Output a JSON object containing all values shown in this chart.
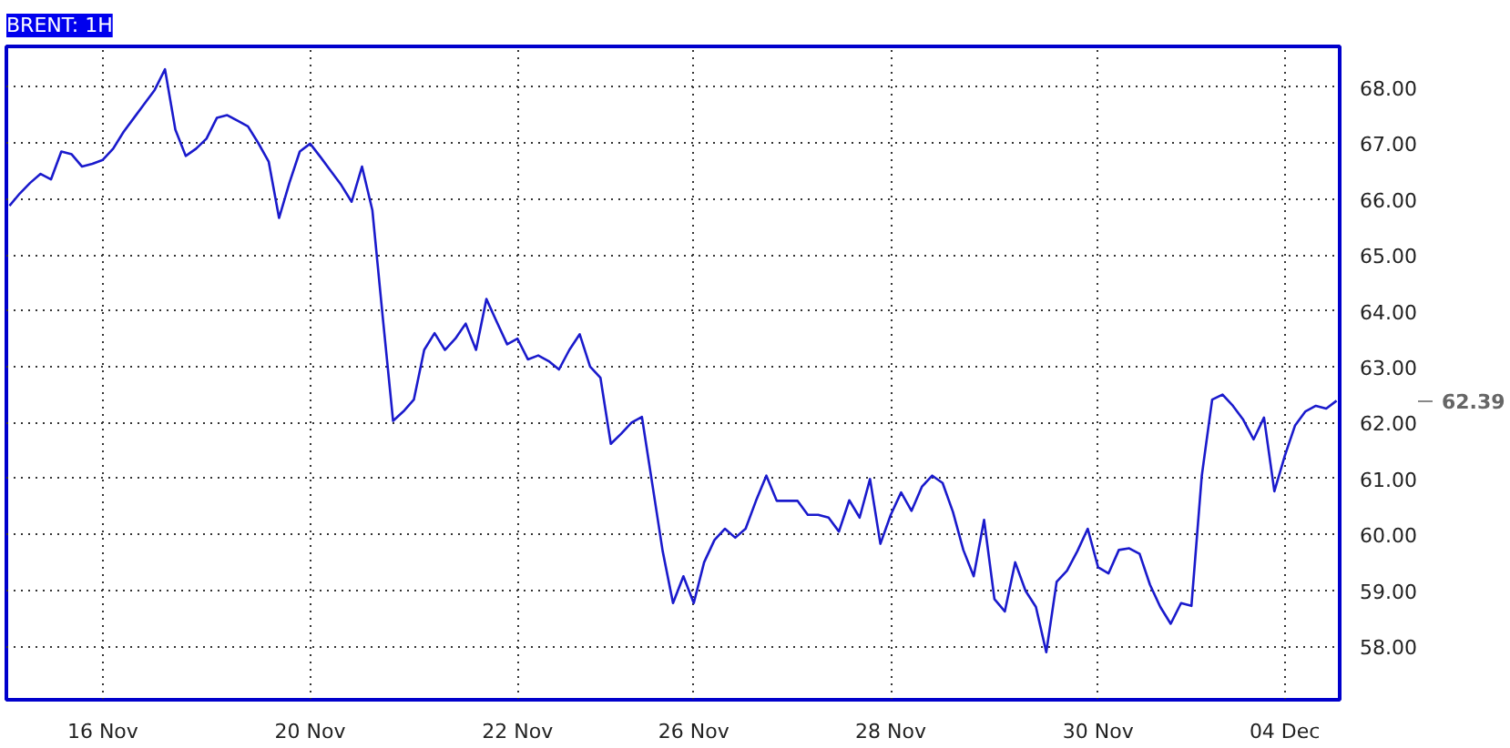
{
  "chart_data": {
    "type": "line",
    "title": "BRENT: 1H",
    "categories": [
      null,
      null,
      null,
      null,
      null,
      null,
      null,
      null,
      null,
      "16 Nov",
      null,
      null,
      null,
      null,
      null,
      null,
      null,
      null,
      null,
      null,
      null,
      null,
      null,
      null,
      null,
      null,
      null,
      null,
      null,
      "20 Nov",
      null,
      null,
      null,
      null,
      null,
      null,
      null,
      null,
      null,
      null,
      null,
      null,
      null,
      null,
      null,
      null,
      null,
      null,
      null,
      "22 Nov",
      null,
      null,
      null,
      null,
      null,
      null,
      null,
      null,
      null,
      null,
      null,
      null,
      null,
      null,
      null,
      null,
      "26 Nov",
      null,
      null,
      null,
      null,
      null,
      null,
      null,
      null,
      null,
      null,
      null,
      null,
      null,
      null,
      null,
      null,
      null,
      null,
      "28 Nov",
      null,
      null,
      null,
      null,
      null,
      null,
      null,
      null,
      null,
      null,
      null,
      null,
      null,
      null,
      null,
      null,
      null,
      null,
      null,
      "30 Nov",
      null,
      null,
      null,
      null,
      null,
      null,
      null,
      null,
      null,
      null,
      null,
      null,
      null,
      null,
      null,
      null,
      null,
      "04 Dec",
      null,
      null,
      null,
      null,
      null
    ],
    "series": [
      {
        "color": "#1a1acc",
        "values": [
          65.88,
          66.1,
          66.29,
          66.45,
          66.35,
          66.85,
          66.8,
          66.58,
          66.63,
          66.7,
          66.9,
          67.2,
          67.45,
          67.7,
          67.95,
          68.32,
          67.24,
          66.77,
          66.9,
          67.08,
          67.45,
          67.5,
          67.4,
          67.3,
          67.0,
          66.67,
          65.66,
          66.29,
          66.85,
          66.99,
          66.75,
          66.5,
          66.25,
          65.95,
          66.58,
          65.8,
          63.89,
          62.03,
          62.2,
          62.41,
          63.3,
          63.6,
          63.3,
          63.5,
          63.77,
          63.3,
          64.21,
          63.8,
          63.4,
          63.5,
          63.13,
          63.2,
          63.1,
          62.95,
          63.3,
          63.58,
          63.0,
          62.8,
          61.62,
          61.8,
          62.0,
          62.1,
          60.9,
          59.7,
          58.77,
          59.25,
          58.77,
          59.5,
          59.9,
          60.1,
          59.94,
          60.1,
          60.6,
          61.05,
          60.6,
          60.6,
          60.6,
          60.35,
          60.35,
          60.3,
          60.05,
          60.61,
          60.3,
          60.99,
          59.83,
          60.35,
          60.75,
          60.42,
          60.85,
          61.05,
          60.92,
          60.4,
          59.72,
          59.25,
          60.26,
          58.84,
          58.62,
          59.5,
          58.99,
          58.7,
          57.89,
          59.15,
          59.35,
          59.7,
          60.1,
          59.41,
          59.3,
          59.72,
          59.75,
          59.65,
          59.1,
          58.7,
          58.4,
          58.77,
          58.72,
          61.05,
          62.41,
          62.5,
          62.3,
          62.05,
          61.7,
          62.09,
          60.77,
          61.4,
          61.95,
          62.2,
          62.3,
          62.25,
          62.39
        ]
      }
    ],
    "ylim": [
      57.04,
      68.73
    ],
    "yticks": [
      {
        "value": 58,
        "label": "58.00"
      },
      {
        "value": 59,
        "label": "59.00"
      },
      {
        "value": 60,
        "label": "60.00"
      },
      {
        "value": 61,
        "label": "61.00"
      },
      {
        "value": 62,
        "label": "62.00"
      },
      {
        "value": 63,
        "label": "63.00"
      },
      {
        "value": 64,
        "label": "64.00"
      },
      {
        "value": 65,
        "label": "65.00"
      },
      {
        "value": 66,
        "label": "66.00"
      },
      {
        "value": 67,
        "label": "67.00"
      },
      {
        "value": 68,
        "label": "68.00"
      }
    ],
    "grid": true,
    "line_style": "solid",
    "annotations": [
      "62.39"
    ]
  }
}
